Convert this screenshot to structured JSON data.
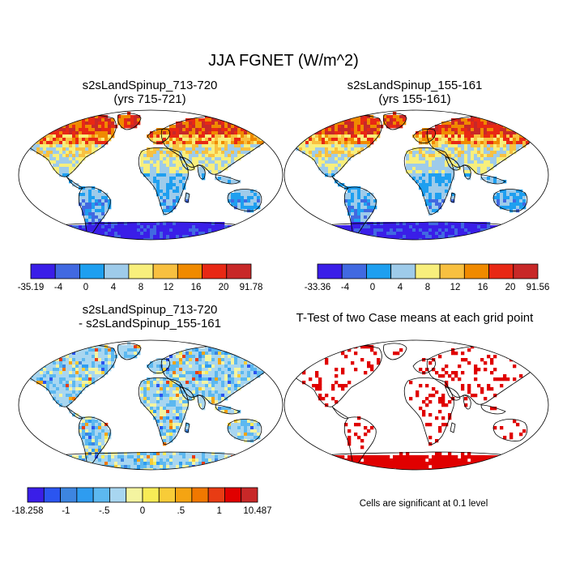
{
  "title": "JJA FGNET (W/m^2)",
  "note": "Cells are significant at 0.1 level",
  "colors": {
    "case": [
      "#3a1ee8",
      "#4169e1",
      "#1e9ff0",
      "#9ecbea",
      "#f8ef7c",
      "#f8c040",
      "#f08a00",
      "#e82814",
      "#c82828"
    ],
    "diff": [
      "#3a1ee8",
      "#2b55f0",
      "#3d85e0",
      "#2e9cf0",
      "#5cb8f0",
      "#a8d6f0",
      "#f4f4a0",
      "#f8ec56",
      "#f8cc38",
      "#f5a412",
      "#f07800",
      "#e83c14",
      "#e00000",
      "#c82828"
    ],
    "ocean": "#ffffff",
    "coast": "#000000",
    "ttest": "#e00000"
  },
  "chart_data": [
    {
      "type": "heatmap",
      "title": "s2sLandSpinup_713-720",
      "subtitle": "(yrs 715-721)",
      "colorbar_labels": [
        "-35.19",
        "-4",
        "0",
        "4",
        "8",
        "12",
        "16",
        "20",
        "91.78"
      ],
      "min": -35.19,
      "max": 91.78,
      "levels": [
        -4,
        0,
        4,
        8,
        12,
        16,
        20
      ]
    },
    {
      "type": "heatmap",
      "title": "s2sLandSpinup_155-161",
      "subtitle": "(yrs 155-161)",
      "colorbar_labels": [
        "-33.36",
        "-4",
        "0",
        "4",
        "8",
        "12",
        "16",
        "20",
        "91.56"
      ],
      "min": -33.36,
      "max": 91.56,
      "levels": [
        -4,
        0,
        4,
        8,
        12,
        16,
        20
      ]
    },
    {
      "type": "heatmap",
      "title": "s2sLandSpinup_713-720",
      "subtitle": "- s2sLandSpinup_155-161",
      "colorbar_labels": [
        "-18.258",
        "-1",
        "-.5",
        "0",
        ".5",
        "1",
        "10.487"
      ],
      "min": -18.258,
      "max": 10.487
    },
    {
      "type": "heatmap",
      "title": "T-Test of two Case means at each grid point"
    }
  ]
}
